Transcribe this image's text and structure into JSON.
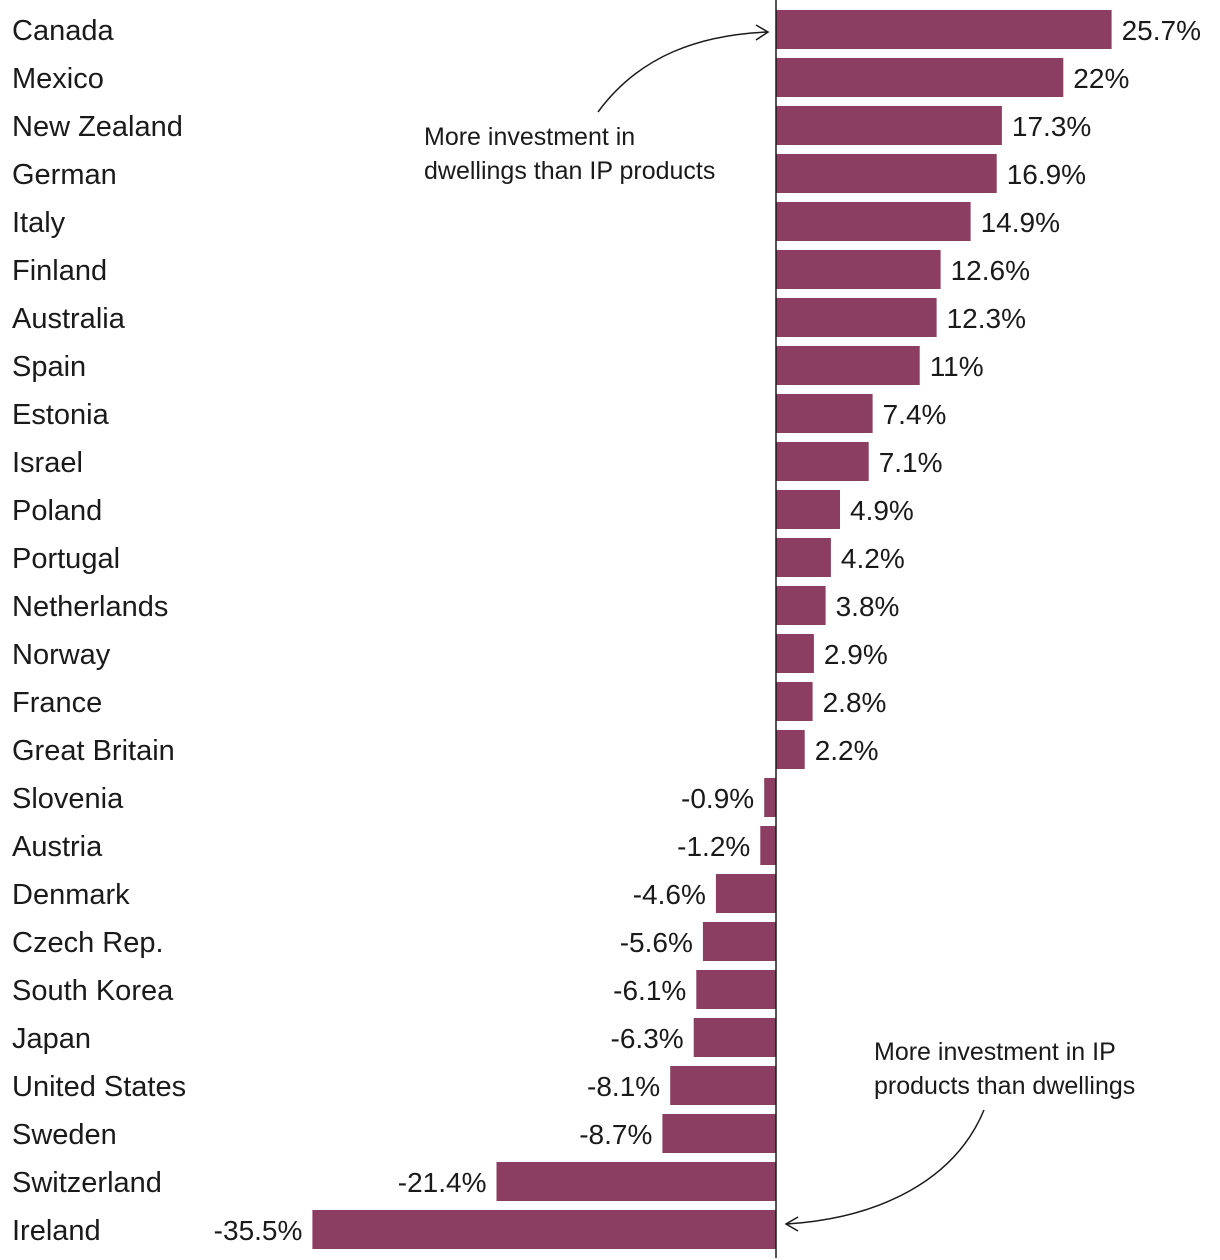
{
  "chart_data": {
    "type": "bar",
    "orientation": "horizontal",
    "title": "",
    "xlabel": "",
    "ylabel": "",
    "unit": "%",
    "xlim": [
      -35.5,
      25.7
    ],
    "grid": false,
    "bar_color": "#8b3d62",
    "categories": [
      "Canada",
      "Mexico",
      "New Zealand",
      "German",
      "Italy",
      "Finland",
      "Australia",
      "Spain",
      "Estonia",
      "Israel",
      "Poland",
      "Portugal",
      "Netherlands",
      "Norway",
      "France",
      "Great Britain",
      "Slovenia",
      "Austria",
      "Denmark",
      "Czech Rep.",
      "South Korea",
      "Japan",
      "United States",
      "Sweden",
      "Switzerland",
      "Ireland"
    ],
    "values": [
      25.7,
      22,
      17.3,
      16.9,
      14.9,
      12.6,
      12.3,
      11,
      7.4,
      7.1,
      4.9,
      4.2,
      3.8,
      2.9,
      2.8,
      2.2,
      -0.9,
      -1.2,
      -4.6,
      -5.6,
      -6.1,
      -6.3,
      -8.1,
      -8.7,
      -21.4,
      -35.5
    ],
    "value_labels": [
      "25.7%",
      "22%",
      "17.3%",
      "16.9%",
      "14.9%",
      "12.6%",
      "12.3%",
      "11%",
      "7.4%",
      "7.1%",
      "4.9%",
      "4.2%",
      "3.8%",
      "2.9%",
      "2.8%",
      "2.2%",
      "-0.9%",
      "-1.2%",
      "-4.6%",
      "-5.6%",
      "-6.1%",
      "-6.3%",
      "-8.1%",
      "-8.7%",
      "-21.4%",
      "-35.5%"
    ],
    "annotations": [
      {
        "lines": [
          "More investment in",
          "dwellings than IP products"
        ],
        "points_to": "Canada"
      },
      {
        "lines": [
          "More investment in IP",
          "products than dwellings"
        ],
        "points_to": "Ireland"
      }
    ]
  }
}
